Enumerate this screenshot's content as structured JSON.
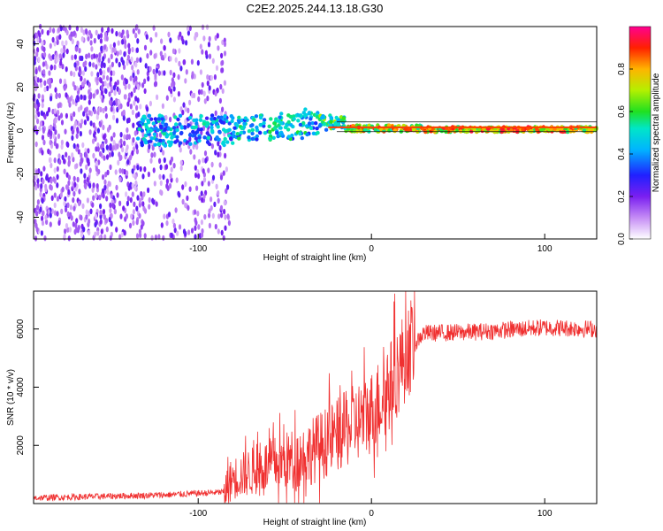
{
  "chart_data": [
    {
      "type": "heatmap",
      "title": "C2E2.2025.244.13.18.G30",
      "xlabel": "Height of straight line (km)",
      "ylabel": "Frequency (Hz)",
      "xlim": [
        -195,
        130
      ],
      "ylim": [
        -50,
        48
      ],
      "xticks": [
        -100,
        0,
        100
      ],
      "yticks": [
        40,
        20,
        0,
        -20,
        -40
      ],
      "colorbar": {
        "label": "Normalized spectral amplitude",
        "range": [
          0.0,
          1.0
        ],
        "ticks": [
          "0.0",
          "0.2",
          "0.4",
          "0.6",
          "0.8"
        ]
      },
      "description_points": [
        {
          "height_km": -195,
          "freq_center_hz": 0,
          "spread_hz": 48,
          "amplitude": 0.25
        },
        {
          "height_km": -82,
          "freq_center_hz": 0,
          "spread_hz": 48,
          "amplitude": 0.15
        },
        {
          "height_km": -50,
          "freq_center_hz": 1,
          "spread_hz": 6,
          "amplitude": 0.4
        },
        {
          "height_km": -25,
          "freq_center_hz": 5,
          "spread_hz": 4,
          "amplitude": 0.5
        },
        {
          "height_km": -10,
          "freq_center_hz": 2,
          "spread_hz": 2,
          "amplitude": 0.95
        },
        {
          "height_km": 0,
          "freq_center_hz": 1,
          "spread_hz": 2,
          "amplitude": 0.7
        },
        {
          "height_km": 130,
          "freq_center_hz": 0,
          "spread_hz": 2,
          "amplitude": 0.95
        }
      ]
    },
    {
      "type": "line",
      "xlabel": "Height of straight line (km)",
      "ylabel": "SNR (10 * v/v)",
      "xlim": [
        -195,
        130
      ],
      "ylim": [
        0,
        7300
      ],
      "xticks": [
        -100,
        0,
        100
      ],
      "yticks": [
        2000,
        4000,
        6000
      ],
      "series_color": "#f03030",
      "baseline_points": [
        {
          "x": -195,
          "y": 150
        },
        {
          "x": -120,
          "y": 250
        },
        {
          "x": -85,
          "y": 350
        },
        {
          "x": -80,
          "y": 800
        },
        {
          "x": -60,
          "y": 1200
        },
        {
          "x": -40,
          "y": 1500
        },
        {
          "x": -20,
          "y": 2200
        },
        {
          "x": 0,
          "y": 3000
        },
        {
          "x": 10,
          "y": 3800
        },
        {
          "x": 15,
          "y": 4400
        },
        {
          "x": 20,
          "y": 5000
        },
        {
          "x": 25,
          "y": 5500
        },
        {
          "x": 30,
          "y": 5850
        },
        {
          "x": 60,
          "y": 5900
        },
        {
          "x": 100,
          "y": 6050
        },
        {
          "x": 130,
          "y": 6000
        }
      ]
    }
  ]
}
